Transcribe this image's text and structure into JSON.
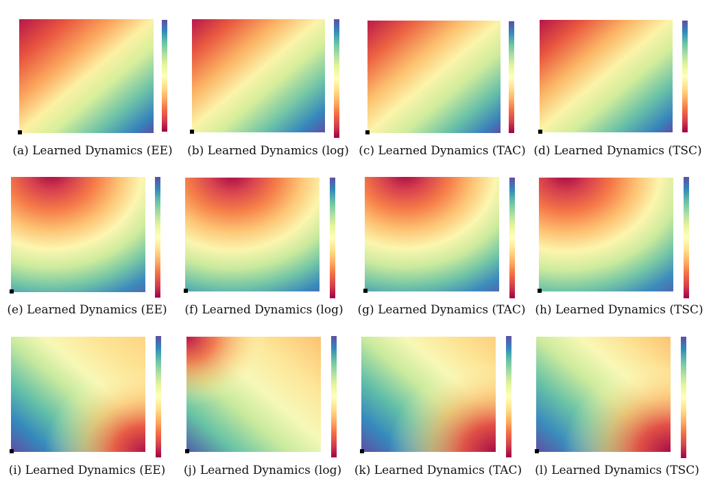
{
  "figure": {
    "panels": [
      {
        "caption": "(a) Learned Dynamics (EE)"
      },
      {
        "caption": "(b) Learned Dynamics (log)"
      },
      {
        "caption": "(c) Learned Dynamics (TAC)"
      },
      {
        "caption": "(d) Learned Dynamics (TSC)"
      },
      {
        "caption": "(e) Learned Dynamics (EE)"
      },
      {
        "caption": "(f) Learned Dynamics (log)"
      },
      {
        "caption": "(g) Learned Dynamics (TAC)"
      },
      {
        "caption": "(h) Learned Dynamics (TSC)"
      },
      {
        "caption": "(i) Learned Dynamics (EE)"
      },
      {
        "caption": "(j) Learned Dynamics (log)"
      },
      {
        "caption": "(k) Learned Dynamics (TAC)"
      },
      {
        "caption": "(l) Learned Dynamics (TSC)"
      }
    ],
    "colors": {
      "colormap": [
        "#9e0142",
        "#d53e4f",
        "#f46d43",
        "#fdae61",
        "#fee08b",
        "#ffffbf",
        "#e6f598",
        "#abdda4",
        "#66c2a5",
        "#3288bd",
        "#5e4fa2"
      ],
      "marker": "#000000"
    }
  }
}
